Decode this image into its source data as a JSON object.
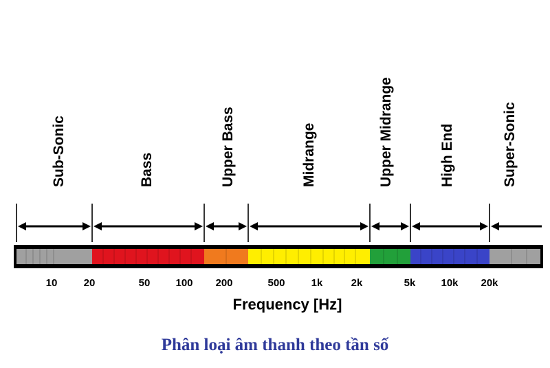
{
  "colors": {
    "frame": "#000000",
    "gray": "#a0a0a0",
    "red": "#e0141e",
    "orange": "#f07a1e",
    "yellow": "#ffee00",
    "green": "#22a03a",
    "blue": "#3a44c8",
    "caption": "#2f3a9a"
  },
  "bands": [
    {
      "label": "Sub-Sonic",
      "color": "gray",
      "from": 0,
      "to": 20
    },
    {
      "label": "Bass",
      "color": "red",
      "from": 20,
      "to": 150
    },
    {
      "label": "Upper Bass",
      "color": "orange",
      "from": 150,
      "to": 300
    },
    {
      "label": "Midrange",
      "color": "yellow",
      "from": 300,
      "to": 2500
    },
    {
      "label": "Upper Midrange",
      "color": "green",
      "from": 2500,
      "to": 5000
    },
    {
      "label": "High End",
      "color": "blue",
      "from": 5000,
      "to": 20000
    },
    {
      "label": "Super-Sonic",
      "color": "gray",
      "from": 20000,
      "to": null
    }
  ],
  "ticks": [
    "10",
    "20",
    "50",
    "100",
    "200",
    "500",
    "1k",
    "2k",
    "5k",
    "10k",
    "20k"
  ],
  "axis_title": "Frequency [Hz]",
  "caption": "Phân loại âm thanh theo tần số"
}
